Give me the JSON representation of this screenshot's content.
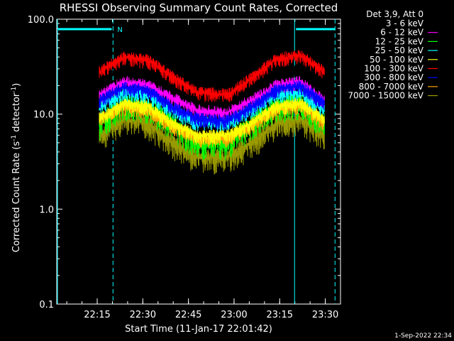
{
  "chart_data": {
    "type": "line",
    "title": "RHESSI Observing Summary Count Rates, Corrected",
    "xlabel": "Start Time (11-Jan-17 22:01:42)",
    "ylabel_main": "Corrected Count Rate (s",
    "ylabel_sup1": "-1",
    "ylabel_mid": " detector",
    "ylabel_sup2": "-1",
    "ylabel_end": ")",
    "yscale": "log",
    "ylim": [
      0.1,
      100.0
    ],
    "xlim_minutes": [
      0,
      93.3
    ],
    "y_ticks": [
      "0.1",
      "1.0",
      "10.0",
      "100.0"
    ],
    "x_ticks": [
      "22:15",
      "22:30",
      "22:45",
      "23:00",
      "23:15",
      "23:30"
    ],
    "legend_header": "Det 3,9, Att 0",
    "series": [
      {
        "name": "3 - 6 keV",
        "color": "#000000",
        "values": [
          22,
          30,
          28,
          20,
          14,
          13,
          19,
          28,
          31,
          18
        ]
      },
      {
        "name": "6 - 12 keV",
        "color": "#ff00ff",
        "values": [
          16,
          22,
          20,
          15,
          11,
          10.5,
          14,
          20,
          22,
          14
        ]
      },
      {
        "name": "12 - 25 keV",
        "color": "#00ff00",
        "values": [
          8,
          13,
          12,
          8,
          5,
          5,
          8,
          12,
          13,
          8
        ]
      },
      {
        "name": "25 - 50 keV",
        "color": "#00ffff",
        "values": [
          12,
          17,
          16,
          11,
          8,
          8,
          11,
          16,
          17,
          11
        ]
      },
      {
        "name": "50 - 100 keV",
        "color": "#ffff00",
        "values": [
          9,
          13,
          12,
          8,
          6,
          6,
          8,
          12,
          13,
          9
        ]
      },
      {
        "name": "100 - 300 keV",
        "color": "#ff0000",
        "values": [
          28,
          40,
          37,
          25,
          17,
          16,
          24,
          38,
          42,
          28
        ]
      },
      {
        "name": "300 - 800 keV",
        "color": "#0000ff",
        "values": [
          14,
          19,
          18,
          12,
          9,
          8.5,
          12,
          18,
          20,
          13
        ]
      },
      {
        "name": "800 - 7000 keV",
        "color": "#ffa500",
        "values": [
          9,
          12,
          11,
          7.5,
          5.5,
          5.5,
          7.5,
          11,
          12.5,
          8
        ]
      },
      {
        "name": "7000 - 15000 keV",
        "color": "#999900",
        "values": [
          6,
          9,
          8,
          5,
          3.5,
          3.5,
          5,
          8,
          9,
          6
        ]
      }
    ],
    "series_x_minutes": [
      14,
      22,
      30,
      38,
      46,
      56,
      64,
      72,
      80,
      88
    ],
    "markers": {
      "flag_label": "N",
      "vlines_minutes": [
        0,
        18.5,
        78.2,
        91.5
      ]
    },
    "timestamp": "1-Sep-2022 22:34"
  }
}
